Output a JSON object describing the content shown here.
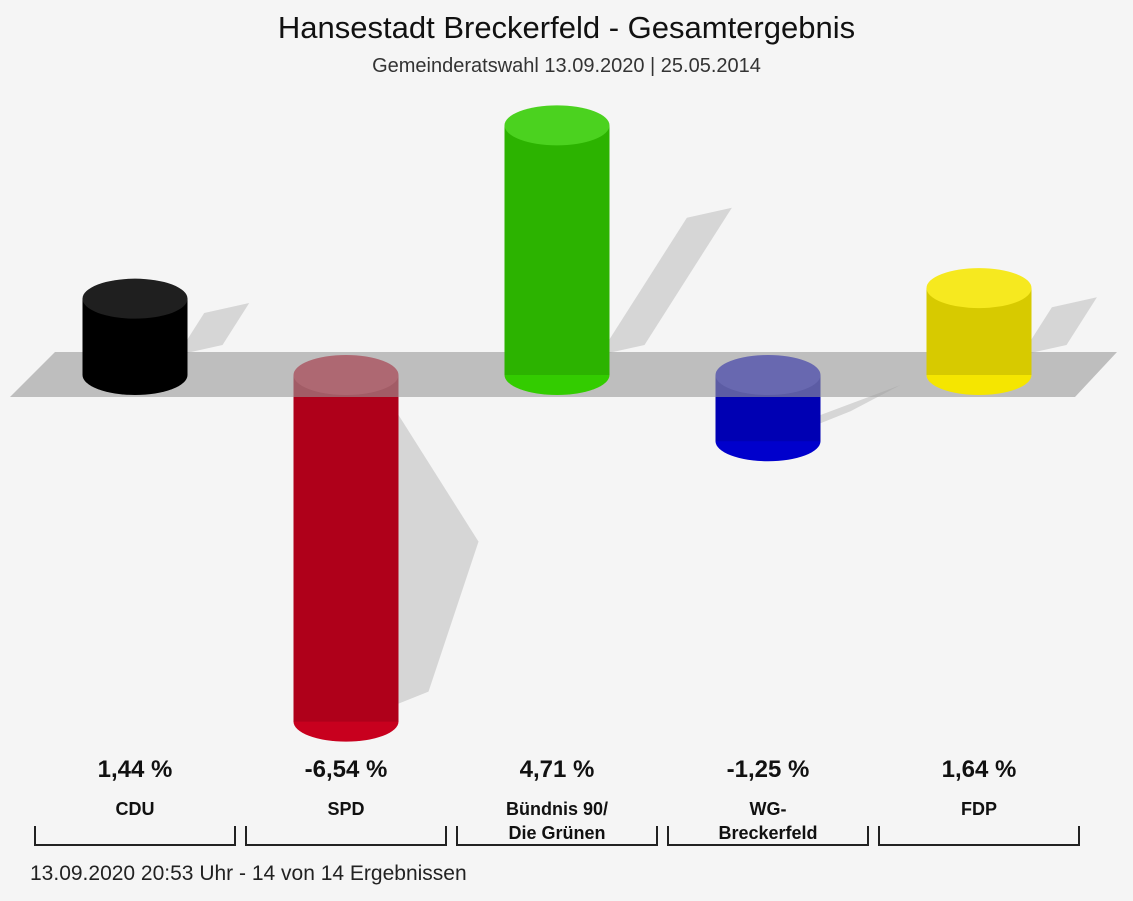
{
  "chart_data": {
    "type": "bar",
    "title": "Hansestadt Breckerfeld - Gesamtergebnis",
    "subtitle": "Gemeinderatswahl 13.09.2020  | 25.05.2014",
    "categories": [
      "CDU",
      "SPD",
      "Bündnis 90/\nDie Grünen",
      "WG-\nBreckerfeld",
      "FDP"
    ],
    "values": [
      1.44,
      -6.54,
      4.71,
      -1.25,
      1.64
    ],
    "value_labels": [
      "1,44 %",
      "-6,54 %",
      "4,71 %",
      "-1,25 %",
      "1,64 %"
    ],
    "colors": [
      "#000000",
      "#c8001e",
      "#33cc00",
      "#0000cc",
      "#f5e600"
    ],
    "footer": "13.09.2020 20:53 Uhr - 14 von 14 Ergebnissen"
  }
}
